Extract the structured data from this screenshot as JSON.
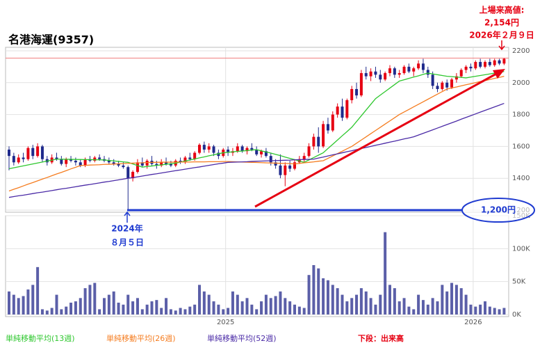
{
  "chart_data": {
    "type": "candlestick",
    "title": "名港海運(9357)",
    "categories": [
      null,
      null,
      null,
      null,
      null,
      null,
      null,
      null,
      null,
      null,
      null,
      null,
      null,
      null,
      null,
      null,
      null,
      null,
      null,
      null,
      null,
      null,
      null,
      null,
      null,
      null,
      null,
      null,
      null,
      null,
      null,
      null,
      null,
      null,
      null,
      null,
      null,
      null,
      null,
      null,
      null,
      null,
      null,
      null,
      null,
      null,
      "2025",
      null,
      null,
      null,
      null,
      null,
      null,
      null,
      null,
      null,
      null,
      null,
      null,
      null,
      null,
      null,
      null,
      null,
      null,
      null,
      null,
      null,
      null,
      null,
      null,
      null,
      null,
      null,
      null,
      null,
      null,
      null,
      null,
      null,
      null,
      null,
      null,
      null,
      null,
      null,
      null,
      null,
      null,
      null,
      null,
      null,
      null,
      null,
      null,
      null,
      null,
      null,
      "2026",
      null,
      null,
      null,
      null,
      null,
      null
    ],
    "candles": [
      [
        1580,
        1600,
        1450,
        1540
      ],
      [
        1540,
        1560,
        1480,
        1500
      ],
      [
        1500,
        1550,
        1490,
        1530
      ],
      [
        1530,
        1560,
        1500,
        1520
      ],
      [
        1520,
        1600,
        1510,
        1590
      ],
      [
        1590,
        1610,
        1520,
        1540
      ],
      [
        1540,
        1620,
        1530,
        1600
      ],
      [
        1600,
        1610,
        1500,
        1520
      ],
      [
        1520,
        1540,
        1480,
        1500
      ],
      [
        1500,
        1550,
        1490,
        1530
      ],
      [
        1530,
        1560,
        1510,
        1520
      ],
      [
        1520,
        1540,
        1480,
        1490
      ],
      [
        1490,
        1530,
        1470,
        1520
      ],
      [
        1520,
        1540,
        1500,
        1510
      ],
      [
        1510,
        1530,
        1480,
        1500
      ],
      [
        1500,
        1520,
        1470,
        1480
      ],
      [
        1480,
        1530,
        1470,
        1520
      ],
      [
        1520,
        1540,
        1500,
        1510
      ],
      [
        1510,
        1540,
        1500,
        1530
      ],
      [
        1530,
        1550,
        1510,
        1520
      ],
      [
        1520,
        1540,
        1500,
        1510
      ],
      [
        1510,
        1530,
        1490,
        1500
      ],
      [
        1500,
        1520,
        1480,
        1490
      ],
      [
        1490,
        1510,
        1470,
        1480
      ],
      [
        1480,
        1500,
        1460,
        1470
      ],
      [
        1470,
        1480,
        1200,
        1400
      ],
      [
        1400,
        1450,
        1380,
        1440
      ],
      [
        1440,
        1520,
        1430,
        1500
      ],
      [
        1500,
        1530,
        1470,
        1480
      ],
      [
        1480,
        1520,
        1460,
        1510
      ],
      [
        1510,
        1540,
        1480,
        1490
      ],
      [
        1490,
        1510,
        1460,
        1480
      ],
      [
        1480,
        1520,
        1470,
        1500
      ],
      [
        1500,
        1530,
        1480,
        1490
      ],
      [
        1490,
        1510,
        1470,
        1480
      ],
      [
        1480,
        1520,
        1470,
        1510
      ],
      [
        1510,
        1530,
        1490,
        1500
      ],
      [
        1500,
        1540,
        1490,
        1530
      ],
      [
        1530,
        1560,
        1510,
        1520
      ],
      [
        1520,
        1570,
        1510,
        1560
      ],
      [
        1560,
        1620,
        1550,
        1610
      ],
      [
        1610,
        1630,
        1560,
        1580
      ],
      [
        1580,
        1620,
        1560,
        1600
      ],
      [
        1600,
        1610,
        1540,
        1560
      ],
      [
        1560,
        1580,
        1520,
        1540
      ],
      [
        1540,
        1590,
        1530,
        1580
      ],
      [
        1580,
        1600,
        1540,
        1560
      ],
      [
        1560,
        1590,
        1540,
        1570
      ],
      [
        1570,
        1620,
        1560,
        1600
      ],
      [
        1600,
        1610,
        1560,
        1570
      ],
      [
        1570,
        1600,
        1550,
        1590
      ],
      [
        1590,
        1620,
        1570,
        1580
      ],
      [
        1580,
        1600,
        1540,
        1550
      ],
      [
        1550,
        1580,
        1530,
        1570
      ],
      [
        1570,
        1590,
        1530,
        1540
      ],
      [
        1540,
        1560,
        1480,
        1500
      ],
      [
        1500,
        1520,
        1460,
        1480
      ],
      [
        1480,
        1550,
        1400,
        1420
      ],
      [
        1420,
        1500,
        1350,
        1480
      ],
      [
        1480,
        1510,
        1440,
        1460
      ],
      [
        1460,
        1520,
        1450,
        1500
      ],
      [
        1500,
        1540,
        1490,
        1520
      ],
      [
        1520,
        1560,
        1500,
        1540
      ],
      [
        1540,
        1620,
        1530,
        1600
      ],
      [
        1600,
        1680,
        1580,
        1660
      ],
      [
        1660,
        1720,
        1560,
        1600
      ],
      [
        1600,
        1760,
        1590,
        1740
      ],
      [
        1740,
        1780,
        1680,
        1700
      ],
      [
        1700,
        1820,
        1690,
        1800
      ],
      [
        1800,
        1870,
        1780,
        1850
      ],
      [
        1850,
        1900,
        1760,
        1780
      ],
      [
        1780,
        1900,
        1770,
        1890
      ],
      [
        1890,
        1980,
        1870,
        1960
      ],
      [
        1960,
        2000,
        1900,
        1920
      ],
      [
        1920,
        2080,
        1910,
        2060
      ],
      [
        2060,
        2100,
        2020,
        2040
      ],
      [
        2040,
        2090,
        2010,
        2070
      ],
      [
        2070,
        2100,
        2030,
        2050
      ],
      [
        2050,
        2080,
        2000,
        2020
      ],
      [
        2020,
        2070,
        2010,
        2060
      ],
      [
        2060,
        2110,
        2040,
        2090
      ],
      [
        2090,
        2100,
        2030,
        2050
      ],
      [
        2050,
        2080,
        2030,
        2060
      ],
      [
        2060,
        2110,
        2050,
        2100
      ],
      [
        2100,
        2120,
        2060,
        2070
      ],
      [
        2070,
        2100,
        2040,
        2090
      ],
      [
        2090,
        2140,
        2080,
        2120
      ],
      [
        2120,
        2150,
        2060,
        2080
      ],
      [
        2080,
        2100,
        2030,
        2050
      ],
      [
        2050,
        2070,
        1960,
        1980
      ],
      [
        1980,
        2000,
        1940,
        1960
      ],
      [
        1960,
        2010,
        1950,
        2000
      ],
      [
        2000,
        2020,
        1950,
        1970
      ],
      [
        1970,
        2030,
        1960,
        2020
      ],
      [
        2020,
        2060,
        2000,
        2040
      ],
      [
        2040,
        2090,
        2030,
        2080
      ],
      [
        2080,
        2110,
        2060,
        2100
      ],
      [
        2100,
        2120,
        2070,
        2090
      ],
      [
        2090,
        2140,
        2080,
        2130
      ],
      [
        2130,
        2150,
        2090,
        2100
      ],
      [
        2100,
        2140,
        2090,
        2130
      ],
      [
        2130,
        2150,
        2100,
        2110
      ],
      [
        2110,
        2150,
        2100,
        2140
      ],
      [
        2140,
        2150,
        2110,
        2120
      ],
      [
        2120,
        2154,
        2110,
        2150
      ]
    ],
    "up_color": "#e60012",
    "down_color": "#1f2a8c",
    "series": [
      {
        "name": "単純移動平均(13週)",
        "color": "#2ec72e",
        "values": [
          1460,
          1466,
          1472,
          1478,
          1484,
          1490,
          1496,
          1502,
          1508,
          1514,
          1520,
          1520,
          1519,
          1519,
          1518,
          1518,
          1517,
          1517,
          1516,
          1516,
          1515,
          1512,
          1509,
          1506,
          1503,
          1500,
          1490,
          1480,
          1470,
          1474,
          1477,
          1481,
          1484,
          1488,
          1491,
          1495,
          1502,
          1508,
          1515,
          1521,
          1528,
          1534,
          1541,
          1547,
          1554,
          1560,
          1563,
          1566,
          1569,
          1571,
          1574,
          1577,
          1580,
          1572,
          1565,
          1558,
          1550,
          1542,
          1533,
          1525,
          1517,
          1508,
          1500,
          1515,
          1530,
          1545,
          1560,
          1587,
          1613,
          1640,
          1667,
          1693,
          1720,
          1756,
          1792,
          1828,
          1864,
          1900,
          1922,
          1944,
          1966,
          1988,
          2010,
          2018,
          2027,
          2035,
          2043,
          2052,
          2060,
          2055,
          2050,
          2045,
          2040,
          2038,
          2035,
          2033,
          2030,
          2035,
          2040,
          2045,
          2050,
          2055,
          2060,
          2065,
          2070
        ]
      },
      {
        "name": "単純移動平均(26週)",
        "color": "#f57c1f",
        "values": [
          1320,
          1331,
          1341,
          1352,
          1363,
          1373,
          1384,
          1395,
          1405,
          1416,
          1427,
          1437,
          1448,
          1459,
          1469,
          1480,
          1481,
          1483,
          1484,
          1485,
          1487,
          1488,
          1489,
          1491,
          1492,
          1493,
          1495,
          1496,
          1497,
          1499,
          1500,
          1500,
          1501,
          1501,
          1501,
          1502,
          1502,
          1502,
          1502,
          1503,
          1503,
          1503,
          1504,
          1504,
          1504,
          1505,
          1505,
          1504,
          1503,
          1502,
          1501,
          1500,
          1499,
          1498,
          1497,
          1496,
          1495,
          1494,
          1493,
          1492,
          1490,
          1493,
          1497,
          1500,
          1503,
          1507,
          1510,
          1525,
          1540,
          1555,
          1570,
          1585,
          1600,
          1620,
          1640,
          1660,
          1680,
          1700,
          1720,
          1740,
          1760,
          1780,
          1800,
          1816,
          1832,
          1848,
          1864,
          1880,
          1896,
          1912,
          1928,
          1944,
          1960,
          1967,
          1973,
          1980,
          1987,
          1993,
          2000,
          2007,
          2013,
          2020,
          2027,
          2033,
          2040
        ]
      },
      {
        "name": "単純移動平均(52週)",
        "color": "#4a2aa6",
        "values": [
          1280,
          1285,
          1290,
          1294,
          1299,
          1304,
          1309,
          1313,
          1318,
          1323,
          1328,
          1333,
          1337,
          1342,
          1347,
          1352,
          1357,
          1361,
          1366,
          1371,
          1376,
          1380,
          1385,
          1390,
          1395,
          1400,
          1404,
          1409,
          1414,
          1419,
          1424,
          1428,
          1433,
          1438,
          1443,
          1448,
          1452,
          1457,
          1462,
          1467,
          1471,
          1476,
          1481,
          1486,
          1491,
          1495,
          1500,
          1501,
          1502,
          1503,
          1504,
          1506,
          1507,
          1508,
          1509,
          1510,
          1511,
          1512,
          1513,
          1514,
          1516,
          1517,
          1518,
          1519,
          1520,
          1527,
          1533,
          1540,
          1547,
          1553,
          1560,
          1567,
          1573,
          1580,
          1587,
          1593,
          1600,
          1607,
          1613,
          1620,
          1627,
          1633,
          1640,
          1647,
          1653,
          1660,
          1671,
          1682,
          1693,
          1704,
          1715,
          1726,
          1737,
          1748,
          1759,
          1771,
          1782,
          1793,
          1804,
          1815,
          1826,
          1837,
          1848,
          1859,
          1870
        ]
      }
    ],
    "ylim": [
      1200,
      2200
    ],
    "yticks": [
      1200,
      1400,
      1600,
      1800,
      2000,
      2200
    ],
    "grid": true,
    "record_high": 2154,
    "record_low": 1200,
    "volume": {
      "color": "#5b5fa8",
      "values": [
        35000,
        30000,
        25000,
        28000,
        38000,
        45000,
        72000,
        8000,
        6000,
        10000,
        30000,
        8000,
        12000,
        18000,
        20000,
        25000,
        40000,
        45000,
        48000,
        8000,
        25000,
        30000,
        35000,
        18000,
        15000,
        30000,
        20000,
        25000,
        8000,
        15000,
        20000,
        22000,
        10000,
        25000,
        8000,
        6000,
        10000,
        8000,
        12000,
        15000,
        45000,
        35000,
        30000,
        20000,
        15000,
        8000,
        10000,
        35000,
        30000,
        20000,
        25000,
        15000,
        8000,
        20000,
        30000,
        25000,
        28000,
        35000,
        25000,
        20000,
        15000,
        12000,
        10000,
        60000,
        75000,
        70000,
        55000,
        52000,
        45000,
        40000,
        30000,
        20000,
        25000,
        30000,
        40000,
        35000,
        25000,
        15000,
        30000,
        125000,
        45000,
        40000,
        20000,
        25000,
        12000,
        8000,
        30000,
        22000,
        15000,
        25000,
        20000,
        45000,
        35000,
        48000,
        45000,
        40000,
        30000,
        15000,
        12000,
        15000,
        20000,
        12000,
        10000,
        8000,
        10000
      ],
      "ylim": [
        0,
        150000
      ],
      "yticks": [
        {
          "value": 0,
          "label": "0K"
        },
        {
          "value": 50000,
          "label": "50K"
        },
        {
          "value": 100000,
          "label": "100K"
        },
        {
          "value": 150000,
          "label": "150K"
        }
      ]
    },
    "annotations": {
      "high_title": "上場来高値:",
      "high_price": "2,154円",
      "high_date": "2026年２月９日",
      "low_year": "2024年",
      "low_date": "８月５日",
      "low_price": "1,200円",
      "volume_note": "下段：出来高"
    }
  }
}
